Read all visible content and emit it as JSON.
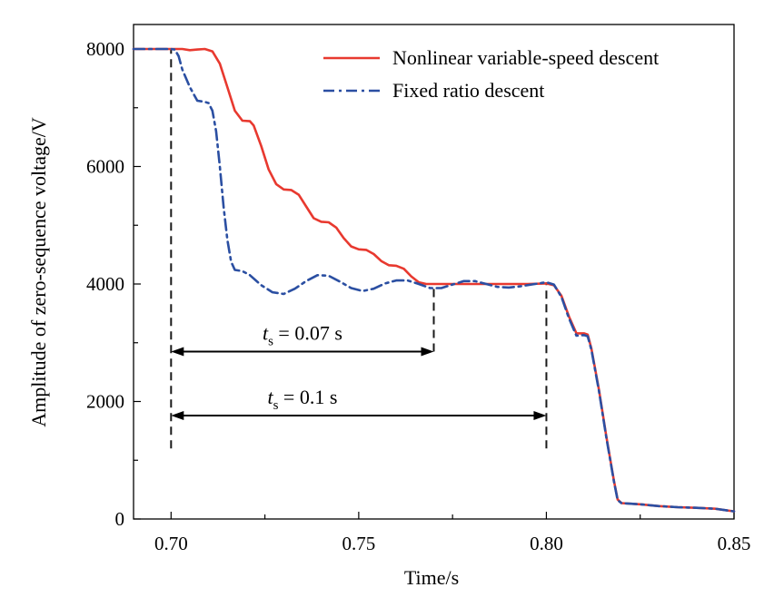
{
  "chart_data": {
    "type": "line",
    "title": "",
    "xlabel": "Time/s",
    "ylabel": "Amplitude of zero-sequence voltage/V",
    "xlim": [
      0.69,
      0.85
    ],
    "ylim": [
      0,
      8200
    ],
    "xticks": [
      0.7,
      0.75,
      0.8,
      0.85
    ],
    "xtick_labels": [
      "0.70",
      "0.75",
      "0.80",
      "0.85"
    ],
    "yticks": [
      0,
      2000,
      4000,
      6000,
      8000
    ],
    "ytick_labels": [
      "0",
      "2000",
      "4000",
      "6000",
      "8000"
    ],
    "grid": false,
    "legend_position": "top-right",
    "series": [
      {
        "name": "Nonlinear variable-speed descent",
        "color": "#e8392f",
        "style": "solid",
        "points": [
          [
            0.69,
            8000
          ],
          [
            0.7,
            8000
          ],
          [
            0.703,
            8000
          ],
          [
            0.705,
            7980
          ],
          [
            0.707,
            7990
          ],
          [
            0.709,
            8000
          ],
          [
            0.711,
            7960
          ],
          [
            0.713,
            7750
          ],
          [
            0.715,
            7350
          ],
          [
            0.717,
            6950
          ],
          [
            0.719,
            6780
          ],
          [
            0.721,
            6770
          ],
          [
            0.722,
            6700
          ],
          [
            0.724,
            6350
          ],
          [
            0.726,
            5950
          ],
          [
            0.728,
            5700
          ],
          [
            0.73,
            5610
          ],
          [
            0.732,
            5600
          ],
          [
            0.734,
            5520
          ],
          [
            0.736,
            5320
          ],
          [
            0.738,
            5120
          ],
          [
            0.74,
            5060
          ],
          [
            0.742,
            5050
          ],
          [
            0.744,
            4960
          ],
          [
            0.746,
            4780
          ],
          [
            0.748,
            4640
          ],
          [
            0.75,
            4590
          ],
          [
            0.752,
            4580
          ],
          [
            0.754,
            4510
          ],
          [
            0.756,
            4390
          ],
          [
            0.758,
            4320
          ],
          [
            0.76,
            4310
          ],
          [
            0.762,
            4260
          ],
          [
            0.764,
            4130
          ],
          [
            0.766,
            4030
          ],
          [
            0.768,
            4000
          ],
          [
            0.775,
            4000
          ],
          [
            0.785,
            4000
          ],
          [
            0.795,
            4000
          ],
          [
            0.8,
            4010
          ],
          [
            0.802,
            3980
          ],
          [
            0.804,
            3800
          ],
          [
            0.806,
            3450
          ],
          [
            0.808,
            3160
          ],
          [
            0.81,
            3160
          ],
          [
            0.811,
            3140
          ],
          [
            0.812,
            2900
          ],
          [
            0.814,
            2200
          ],
          [
            0.816,
            1400
          ],
          [
            0.818,
            650
          ],
          [
            0.819,
            330
          ],
          [
            0.82,
            270
          ],
          [
            0.825,
            250
          ],
          [
            0.83,
            220
          ],
          [
            0.835,
            200
          ],
          [
            0.84,
            190
          ],
          [
            0.845,
            175
          ],
          [
            0.85,
            130
          ]
        ]
      },
      {
        "name": "Fixed ratio descent",
        "color": "#2b4fa2",
        "style": "dash-dot",
        "points": [
          [
            0.69,
            8000
          ],
          [
            0.7,
            8000
          ],
          [
            0.701,
            7990
          ],
          [
            0.702,
            7880
          ],
          [
            0.703,
            7650
          ],
          [
            0.705,
            7350
          ],
          [
            0.707,
            7120
          ],
          [
            0.709,
            7100
          ],
          [
            0.71,
            7080
          ],
          [
            0.711,
            6950
          ],
          [
            0.712,
            6600
          ],
          [
            0.713,
            6000
          ],
          [
            0.714,
            5300
          ],
          [
            0.715,
            4750
          ],
          [
            0.716,
            4380
          ],
          [
            0.717,
            4240
          ],
          [
            0.719,
            4220
          ],
          [
            0.721,
            4150
          ],
          [
            0.724,
            3980
          ],
          [
            0.727,
            3860
          ],
          [
            0.73,
            3830
          ],
          [
            0.733,
            3920
          ],
          [
            0.736,
            4050
          ],
          [
            0.739,
            4150
          ],
          [
            0.742,
            4140
          ],
          [
            0.745,
            4040
          ],
          [
            0.748,
            3930
          ],
          [
            0.751,
            3880
          ],
          [
            0.754,
            3920
          ],
          [
            0.757,
            4010
          ],
          [
            0.76,
            4060
          ],
          [
            0.763,
            4060
          ],
          [
            0.766,
            4000
          ],
          [
            0.769,
            3930
          ],
          [
            0.772,
            3930
          ],
          [
            0.775,
            3990
          ],
          [
            0.778,
            4050
          ],
          [
            0.781,
            4050
          ],
          [
            0.784,
            4000
          ],
          [
            0.787,
            3950
          ],
          [
            0.79,
            3940
          ],
          [
            0.793,
            3960
          ],
          [
            0.796,
            3990
          ],
          [
            0.799,
            4020
          ],
          [
            0.8,
            4030
          ],
          [
            0.802,
            3990
          ],
          [
            0.804,
            3780
          ],
          [
            0.806,
            3420
          ],
          [
            0.808,
            3120
          ],
          [
            0.81,
            3130
          ],
          [
            0.811,
            3110
          ],
          [
            0.812,
            2880
          ],
          [
            0.814,
            2180
          ],
          [
            0.816,
            1380
          ],
          [
            0.818,
            640
          ],
          [
            0.819,
            320
          ],
          [
            0.82,
            270
          ],
          [
            0.825,
            250
          ],
          [
            0.83,
            220
          ],
          [
            0.835,
            200
          ],
          [
            0.84,
            190
          ],
          [
            0.845,
            175
          ],
          [
            0.85,
            130
          ]
        ]
      }
    ],
    "annotations": [
      {
        "symbol": "t",
        "subscript": "s",
        "text": " = 0.07 s",
        "x_start": 0.7,
        "x_end": 0.77,
        "y": 2850,
        "label_x": 0.735,
        "label_y": 3050
      },
      {
        "symbol": "t",
        "subscript": "s",
        "text": " = 0.1 s",
        "x_start": 0.7,
        "x_end": 0.8,
        "y": 1760,
        "label_x": 0.735,
        "label_y": 1960
      }
    ],
    "markers": [
      {
        "x": 0.7,
        "y_from": 1200,
        "y_to": 8000
      },
      {
        "x": 0.77,
        "y_from": 2850,
        "y_to": 3950
      },
      {
        "x": 0.8,
        "y_from": 1200,
        "y_to": 4030
      }
    ]
  }
}
